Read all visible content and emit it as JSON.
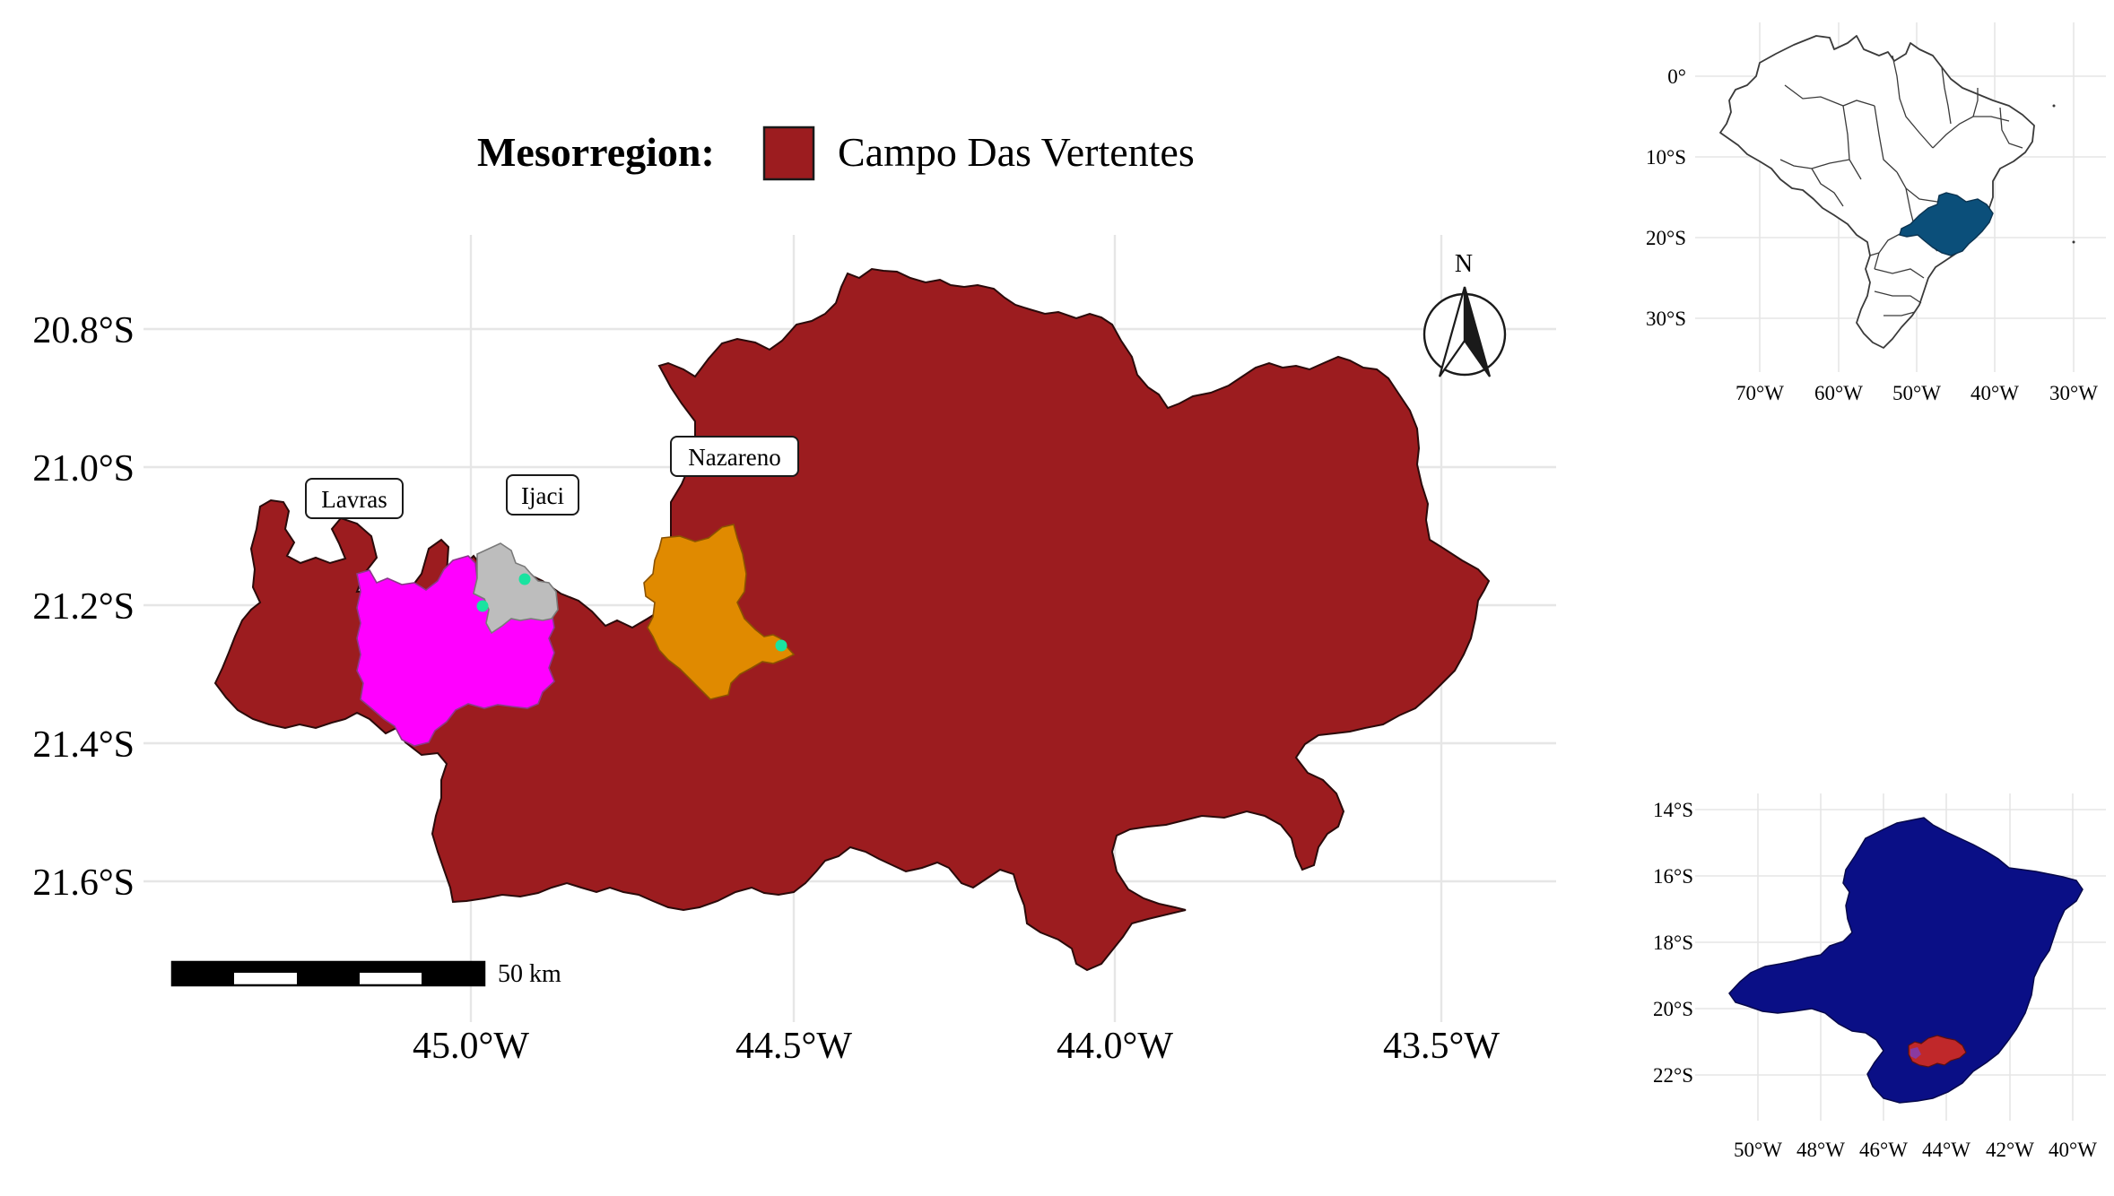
{
  "legend": {
    "title": "Mesorregion:",
    "items": [
      {
        "label": "Campo Das Vertentes",
        "color": "#9c1c1f"
      }
    ]
  },
  "main_map": {
    "y_ticks": [
      "20.8°S",
      "21.0°S",
      "21.2°S",
      "21.4°S",
      "21.6°S"
    ],
    "x_ticks": [
      "45.0°W",
      "44.5°W",
      "44.0°W",
      "43.5°W"
    ],
    "labels": [
      {
        "text": "Lavras",
        "color": "#ff00ff"
      },
      {
        "text": "Ijaci",
        "color": "#bdbdbd"
      },
      {
        "text": "Nazareno",
        "color": "#e08a00"
      }
    ],
    "region_color": "#9c1c1f",
    "point_color": "#19e3a0",
    "north_label": "N",
    "scale_label": "50 km"
  },
  "brazil_inset": {
    "y_ticks": [
      "0°",
      "10°S",
      "20°S",
      "30°S"
    ],
    "x_ticks": [
      "70°W",
      "60°W",
      "50°W",
      "40°W",
      "30°W"
    ],
    "highlight_color": "#0b4f7a"
  },
  "mg_inset": {
    "y_ticks": [
      "14°S",
      "16°S",
      "18°S",
      "20°S",
      "22°S"
    ],
    "x_ticks": [
      "50°W",
      "48°W",
      "46°W",
      "44°W",
      "42°W",
      "40°W"
    ],
    "state_color": "#0a0f86",
    "region_color": "#c0282a"
  }
}
